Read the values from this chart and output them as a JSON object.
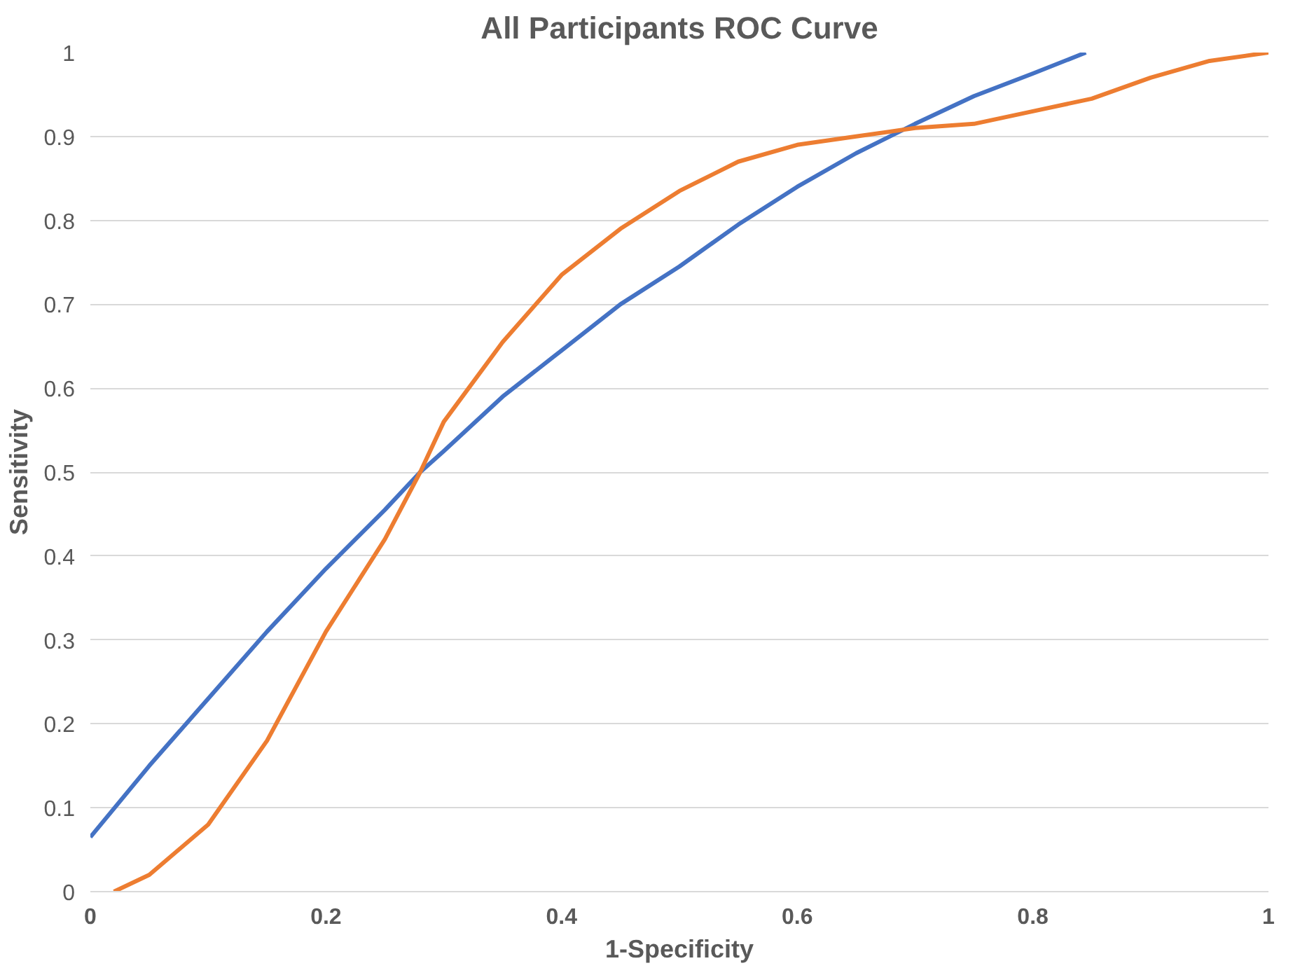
{
  "chart_data": {
    "type": "line",
    "title": "All Participants ROC Curve",
    "xlabel": "1-Specificity",
    "ylabel": "Sensitivity",
    "xlim": [
      0,
      1
    ],
    "ylim": [
      0,
      1
    ],
    "xticks": [
      0,
      0.2,
      0.4,
      0.6,
      0.8,
      1
    ],
    "yticks": [
      0,
      0.1,
      0.2,
      0.3,
      0.4,
      0.5,
      0.6,
      0.7,
      0.8,
      0.9,
      1
    ],
    "grid": "y",
    "marker": "none",
    "line_style": "solid",
    "series": [
      {
        "color": "#4472c4",
        "x": [
          0,
          0.05,
          0.1,
          0.15,
          0.2,
          0.25,
          0.28,
          0.3,
          0.35,
          0.4,
          0.45,
          0.5,
          0.55,
          0.6,
          0.65,
          0.7,
          0.75,
          0.8,
          0.845
        ],
        "values": [
          0.065,
          0.15,
          0.23,
          0.31,
          0.385,
          0.455,
          0.5,
          0.525,
          0.59,
          0.645,
          0.7,
          0.745,
          0.795,
          0.84,
          0.88,
          0.915,
          0.948,
          0.975,
          1.0
        ]
      },
      {
        "color": "#ed7d31",
        "x": [
          0.02,
          0.05,
          0.1,
          0.15,
          0.2,
          0.25,
          0.28,
          0.3,
          0.35,
          0.4,
          0.45,
          0.5,
          0.55,
          0.6,
          0.65,
          0.7,
          0.75,
          0.8,
          0.85,
          0.9,
          0.95,
          1.0
        ],
        "values": [
          0,
          0.02,
          0.08,
          0.18,
          0.31,
          0.42,
          0.5,
          0.56,
          0.655,
          0.735,
          0.79,
          0.835,
          0.87,
          0.89,
          0.9,
          0.91,
          0.915,
          0.93,
          0.945,
          0.97,
          0.99,
          1.0
        ]
      }
    ]
  }
}
